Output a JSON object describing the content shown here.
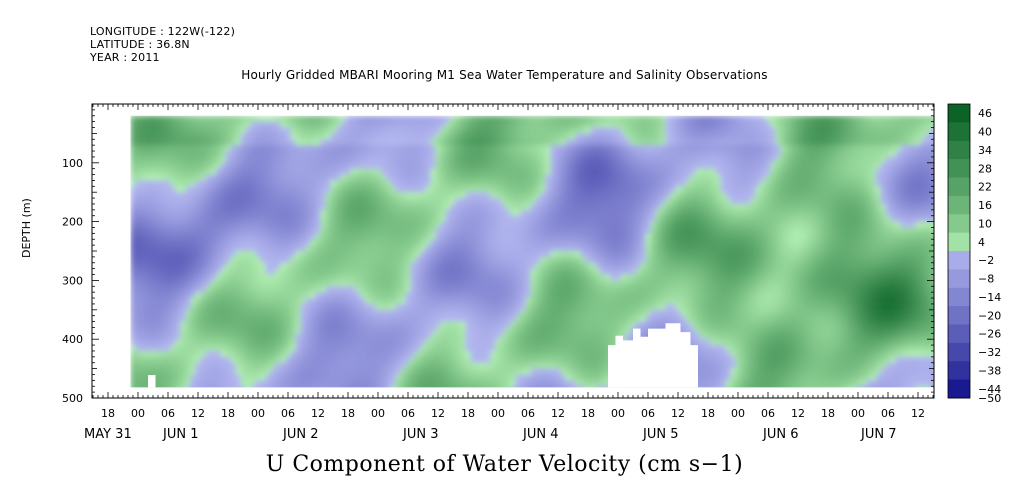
{
  "header": {
    "longitude": "LONGITUDE : 122W(-122)",
    "latitude": "LATITUDE : 36.8N",
    "year": "YEAR : 2011"
  },
  "chart_data": {
    "type": "heatmap",
    "title": "Hourly Gridded MBARI Mooring M1 Sea Water Temperature and Salinity Observations",
    "xlabel": "U Component of Water Velocity (cm s−1)",
    "ylabel": "DEPTH (m)",
    "x_range": [
      "2011-05-31T12:00",
      "2011-06-07T18:00"
    ],
    "y_range": [
      500,
      0
    ],
    "y_ticks": [
      100,
      200,
      300,
      400,
      500
    ],
    "hour_ticks": [
      "18",
      "00",
      "06",
      "12",
      "18",
      "00",
      "06",
      "12",
      "18",
      "00",
      "06",
      "12",
      "18",
      "00",
      "06",
      "12",
      "18",
      "00",
      "06",
      "12",
      "18",
      "00",
      "06",
      "12",
      "18",
      "00",
      "06",
      "12"
    ],
    "date_labels": [
      "MAY 31",
      "JUN  1",
      "JUN  2",
      "JUN  3",
      "JUN  4",
      "JUN  5",
      "JUN  6",
      "JUN  7"
    ],
    "colorbar": {
      "levels": [
        -50,
        -44,
        -38,
        -32,
        -26,
        -20,
        -14,
        -8,
        -2,
        4,
        10,
        16,
        22,
        28,
        34,
        40,
        46
      ],
      "labels": [
        "46",
        "40",
        "34",
        "28",
        "22",
        "16",
        "10",
        "4",
        "−2",
        "−8",
        "−14",
        "−20",
        "−26",
        "−32",
        "−38",
        "−44",
        "−50"
      ],
      "low_color": "#000080",
      "mid_low_color": "#b4b8f0",
      "mid_high_color": "#b4f0b4",
      "high_color": "#005a1e"
    },
    "features": [
      {
        "label": "JUN  6 18h, 260-300 m",
        "approx_value": 25
      },
      {
        "label": "JUN  1 06h, 200-250 m",
        "approx_value": -20
      },
      {
        "label": "JUN  4 23h, 100-250 m",
        "approx_value": -25
      }
    ]
  }
}
